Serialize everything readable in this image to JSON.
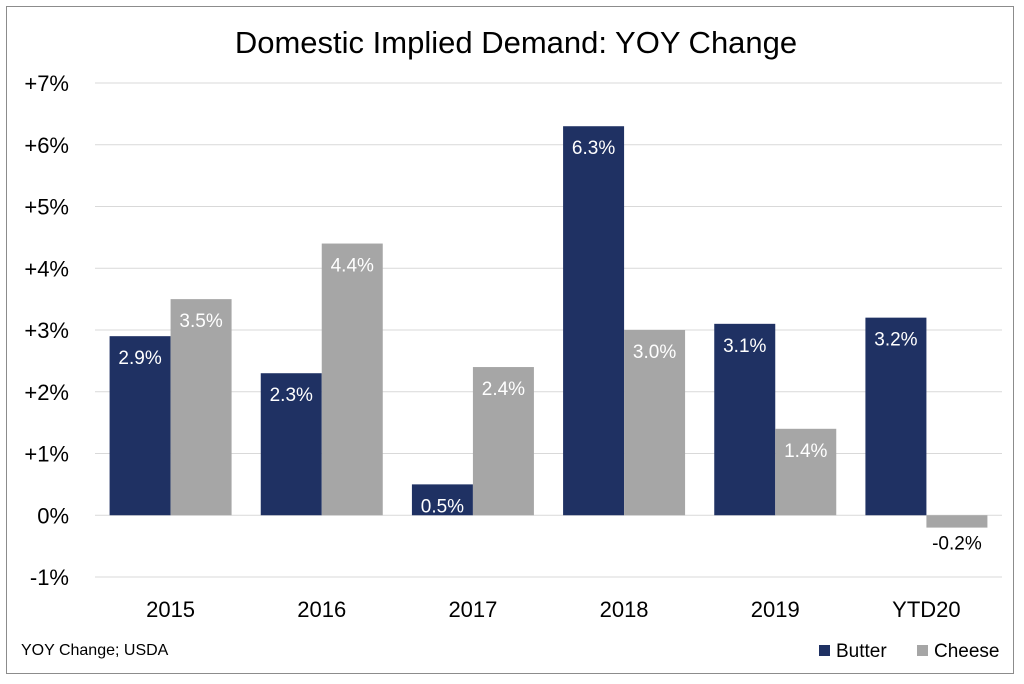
{
  "chart_data": {
    "type": "bar",
    "title": "Domestic Implied Demand: YOY Change",
    "categories": [
      "2015",
      "2016",
      "2017",
      "2018",
      "2019",
      "YTD20"
    ],
    "series": [
      {
        "name": "Butter",
        "values": [
          2.9,
          2.3,
          0.5,
          6.3,
          3.1,
          3.2
        ],
        "labels": [
          "2.9%",
          "2.3%",
          "0.5%",
          "6.3%",
          "3.1%",
          "3.2%"
        ],
        "color": "#1f3163"
      },
      {
        "name": "Cheese",
        "values": [
          3.5,
          4.4,
          2.4,
          3.0,
          1.4,
          -0.2
        ],
        "labels": [
          "3.5%",
          "4.4%",
          "2.4%",
          "3.0%",
          "1.4%",
          "-0.2%"
        ],
        "color": "#a6a6a6"
      }
    ],
    "ylim": [
      -1,
      7
    ],
    "yticks": [
      -1,
      0,
      1,
      2,
      3,
      4,
      5,
      6,
      7
    ],
    "ytick_labels": [
      "-1%",
      "0%",
      "+1%",
      "+2%",
      "+3%",
      "+4%",
      "+5%",
      "+6%",
      "+7%"
    ],
    "grid": true,
    "legend_position": "bottom-right",
    "source_note": "YOY Change; USDA"
  }
}
